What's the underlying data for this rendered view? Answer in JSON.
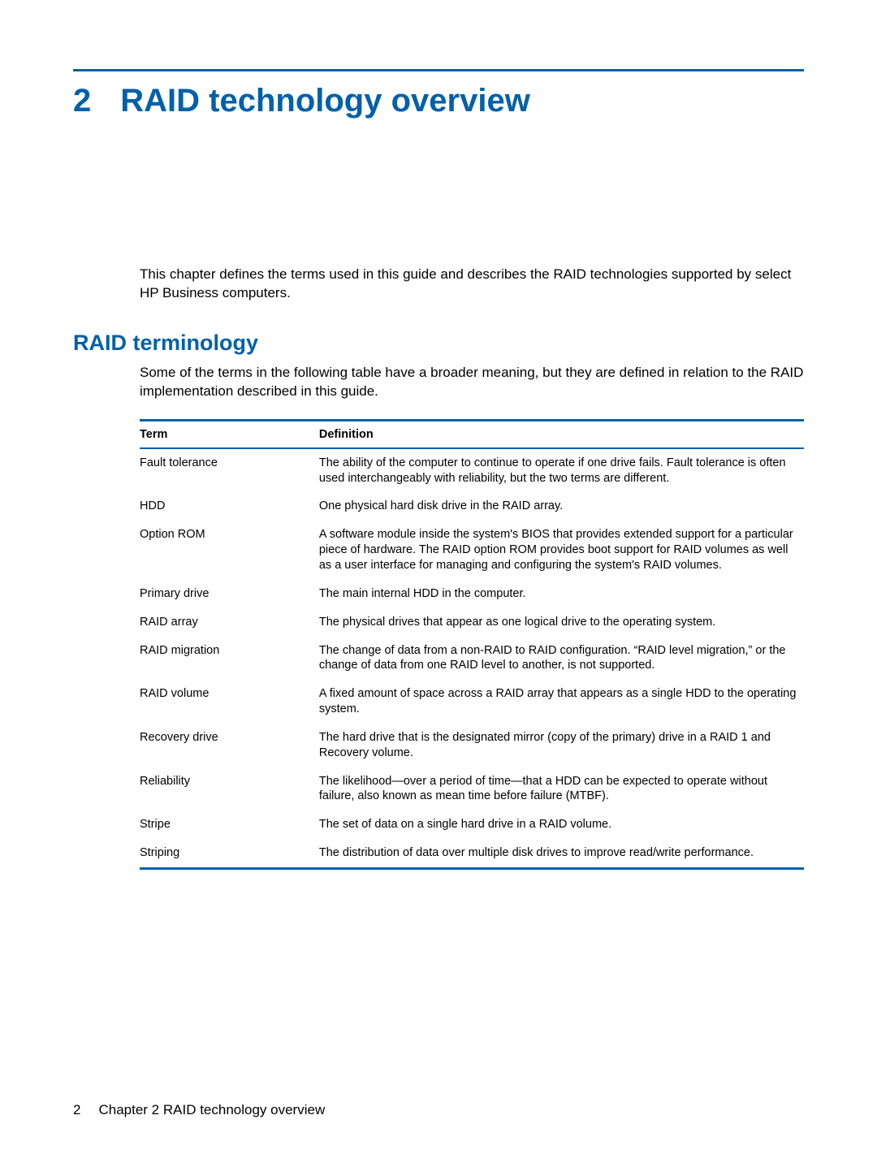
{
  "colors": {
    "accent": "#0060a9",
    "text": "#000000",
    "background": "#ffffff"
  },
  "typography": {
    "body_family": "Arial, Helvetica, sans-serif",
    "heading_size_pt": 30,
    "section_size_pt": 20,
    "body_size_pt": 12.5,
    "table_size_pt": 11
  },
  "chapter": {
    "number": "2",
    "title": "RAID technology overview",
    "intro": "This chapter defines the terms used in this guide and describes the RAID technologies supported by select HP Business computers."
  },
  "section": {
    "heading": "RAID terminology",
    "intro": "Some of the terms in the following table have a broader meaning, but they are defined in relation to the RAID implementation described in this guide."
  },
  "table": {
    "columns": [
      "Term",
      "Definition"
    ],
    "column_widths_pct": [
      27,
      73
    ],
    "border_color": "#0060a9",
    "rows": [
      {
        "term": "Fault tolerance",
        "definition": "The ability of the computer to continue to operate if one drive fails. Fault tolerance is often used interchangeably with reliability, but the two terms are different."
      },
      {
        "term": "HDD",
        "definition": "One physical hard disk drive in the RAID array."
      },
      {
        "term": "Option ROM",
        "definition": "A software module inside the system's BIOS that provides extended support for a particular piece of hardware. The RAID option ROM provides boot support for RAID volumes as well as a user interface for managing and configuring the system's RAID volumes."
      },
      {
        "term": "Primary drive",
        "definition": "The main internal HDD in the computer."
      },
      {
        "term": "RAID array",
        "definition": "The physical drives that appear as one logical drive to the operating system."
      },
      {
        "term": "RAID migration",
        "definition": "The change of data from a non-RAID to RAID configuration. “RAID level migration,” or the change of data from one RAID level to another, is not supported."
      },
      {
        "term": "RAID volume",
        "definition": "A fixed amount of space across a RAID array that appears as a single HDD to the operating system."
      },
      {
        "term": "Recovery drive",
        "definition": "The hard drive that is the designated mirror (copy of the primary) drive in a RAID 1 and Recovery volume."
      },
      {
        "term": "Reliability",
        "definition": "The likelihood—over a period of time—that a HDD can be expected to operate without failure, also known as mean time before failure (MTBF)."
      },
      {
        "term": "Stripe",
        "definition": "The set of data on a single hard drive in a RAID volume."
      },
      {
        "term": "Striping",
        "definition": "The distribution of data over multiple disk drives to improve read/write performance."
      }
    ]
  },
  "footer": {
    "page_number": "2",
    "text": "Chapter 2   RAID technology overview"
  }
}
